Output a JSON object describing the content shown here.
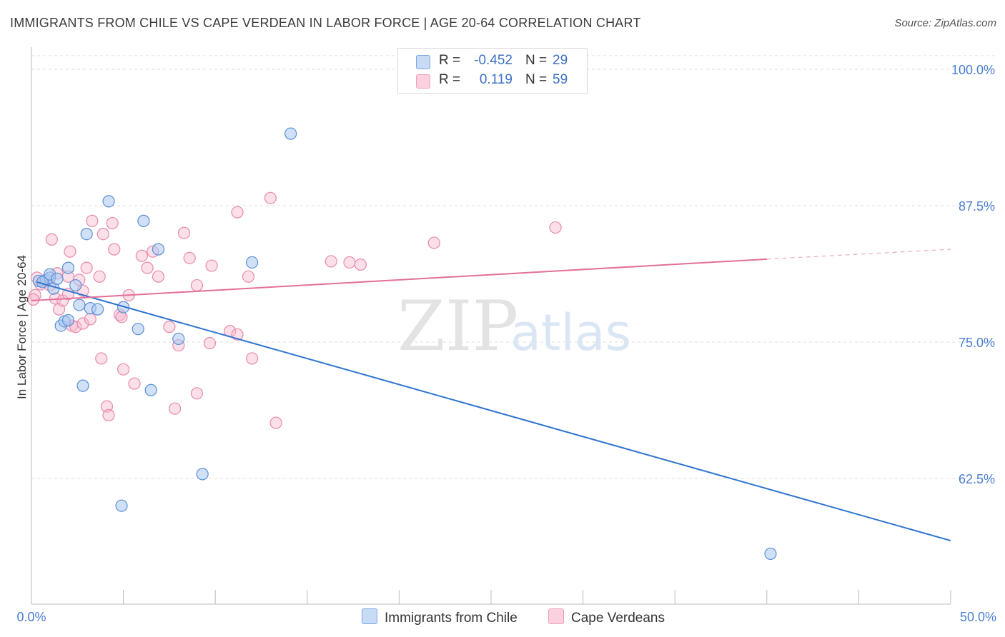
{
  "title": "IMMIGRANTS FROM CHILE VS CAPE VERDEAN IN LABOR FORCE | AGE 20-64 CORRELATION CHART",
  "source": "Source: ZipAtlas.com",
  "watermark": {
    "zip": "ZIP",
    "atlas": "atlas"
  },
  "legend": {
    "rows": [
      {
        "r_label": "R =",
        "r_value": "-0.452",
        "n_label": "N =",
        "n_value": "29"
      },
      {
        "r_label": "R =",
        "r_value": "0.119",
        "n_label": "N =",
        "n_value": "59"
      }
    ]
  },
  "bottom_legend": {
    "series1": "Immigrants from Chile",
    "series2": "Cape Verdeans"
  },
  "colors": {
    "blue_fill": "#a9c8f0",
    "blue_stroke": "#5b8fd6",
    "blue_line": "#2f74d0",
    "pink_fill": "#f6b9cf",
    "pink_stroke": "#e88aab",
    "pink_line": "#e36f98",
    "tick_text": "#4a7fd0",
    "grid": "#dcdcdc"
  },
  "chart_data": {
    "type": "scatter",
    "title": "IMMIGRANTS FROM CHILE VS CAPE VERDEAN IN LABOR FORCE | AGE 20-64 CORRELATION CHART",
    "xlabel": "",
    "ylabel": "In Labor Force | Age 20-64",
    "xlim": [
      0,
      50
    ],
    "ylim": [
      51.5,
      102.5
    ],
    "x_tick_labels": [
      "0.0%",
      "50.0%"
    ],
    "y_ticks": [
      62.5,
      75.0,
      87.5,
      100.0
    ],
    "y_tick_labels": [
      "62.5%",
      "75.0%",
      "87.5%",
      "100.0%"
    ],
    "x_minor_ticks": [
      5,
      10,
      15,
      20,
      25,
      30,
      35,
      40,
      45,
      50
    ],
    "series": [
      {
        "name": "Immigrants from Chile",
        "R": -0.452,
        "N": 29,
        "trend": {
          "x0": 0.3,
          "y0": 80.5,
          "x1": 50,
          "y1": 56.8
        },
        "points": [
          [
            0.4,
            80.6
          ],
          [
            0.8,
            80.7
          ],
          [
            1.0,
            80.9
          ],
          [
            0.6,
            80.5
          ],
          [
            1.2,
            79.9
          ],
          [
            1.0,
            81.2
          ],
          [
            1.4,
            80.8
          ],
          [
            1.6,
            76.5
          ],
          [
            1.8,
            76.9
          ],
          [
            2.0,
            77.0
          ],
          [
            2.0,
            81.8
          ],
          [
            2.4,
            80.2
          ],
          [
            2.6,
            78.4
          ],
          [
            2.8,
            71.0
          ],
          [
            3.0,
            84.9
          ],
          [
            3.2,
            78.1
          ],
          [
            3.6,
            78.0
          ],
          [
            4.2,
            87.9
          ],
          [
            4.9,
            60.0
          ],
          [
            5.0,
            78.2
          ],
          [
            5.8,
            76.2
          ],
          [
            6.1,
            86.1
          ],
          [
            6.5,
            70.6
          ],
          [
            6.9,
            83.5
          ],
          [
            8.0,
            75.3
          ],
          [
            9.3,
            62.9
          ],
          [
            12.0,
            82.3
          ],
          [
            14.1,
            94.1
          ],
          [
            40.2,
            55.6
          ]
        ]
      },
      {
        "name": "Cape Verdeans",
        "R": 0.119,
        "N": 59,
        "trend": {
          "x0": 0,
          "y0": 78.8,
          "x1": 40,
          "y1": 82.6,
          "dash_to_x": 50,
          "dash_to_y": 83.5
        },
        "points": [
          [
            0.2,
            79.3
          ],
          [
            0.3,
            80.9
          ],
          [
            0.5,
            80.3
          ],
          [
            0.7,
            80.6
          ],
          [
            1.0,
            80.2
          ],
          [
            1.1,
            84.4
          ],
          [
            1.3,
            79.0
          ],
          [
            1.4,
            81.3
          ],
          [
            1.5,
            78.0
          ],
          [
            1.7,
            78.8
          ],
          [
            2.0,
            81.0
          ],
          [
            2.0,
            79.4
          ],
          [
            2.1,
            83.3
          ],
          [
            2.2,
            76.5
          ],
          [
            2.4,
            76.4
          ],
          [
            2.6,
            80.7
          ],
          [
            2.8,
            76.7
          ],
          [
            2.8,
            79.7
          ],
          [
            3.0,
            81.8
          ],
          [
            3.2,
            77.1
          ],
          [
            3.3,
            86.1
          ],
          [
            3.7,
            81.0
          ],
          [
            3.8,
            73.5
          ],
          [
            3.9,
            84.9
          ],
          [
            4.1,
            69.1
          ],
          [
            4.2,
            68.3
          ],
          [
            4.4,
            85.9
          ],
          [
            4.5,
            83.5
          ],
          [
            4.8,
            77.5
          ],
          [
            4.9,
            77.3
          ],
          [
            5.0,
            72.5
          ],
          [
            5.3,
            79.3
          ],
          [
            5.6,
            71.2
          ],
          [
            6.0,
            82.9
          ],
          [
            6.3,
            81.8
          ],
          [
            6.6,
            83.3
          ],
          [
            6.9,
            81.0
          ],
          [
            7.5,
            76.4
          ],
          [
            7.8,
            68.9
          ],
          [
            8.0,
            74.7
          ],
          [
            8.3,
            85.0
          ],
          [
            8.6,
            82.7
          ],
          [
            9.0,
            80.2
          ],
          [
            9.0,
            70.3
          ],
          [
            9.7,
            74.9
          ],
          [
            9.8,
            82.0
          ],
          [
            10.8,
            76.0
          ],
          [
            11.2,
            75.7
          ],
          [
            11.2,
            86.9
          ],
          [
            11.8,
            81.0
          ],
          [
            12.0,
            73.5
          ],
          [
            13.0,
            88.2
          ],
          [
            13.3,
            67.6
          ],
          [
            16.3,
            82.4
          ],
          [
            17.3,
            82.3
          ],
          [
            17.9,
            82.1
          ],
          [
            21.9,
            84.1
          ],
          [
            28.5,
            85.5
          ],
          [
            0.1,
            78.9
          ]
        ]
      }
    ]
  }
}
